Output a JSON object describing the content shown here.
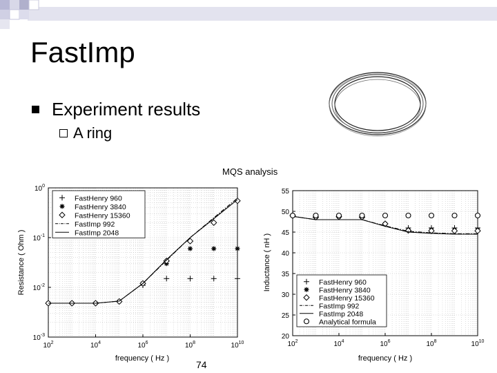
{
  "slide": {
    "title": "FastImp",
    "bullet1": "Experiment results",
    "bullet2": "A ring",
    "mqs_label": "MQS analysis",
    "page_number": "74"
  },
  "chart_data": [
    {
      "type": "line",
      "xlabel": "frequency ( Hz )",
      "ylabel": "Resistance ( Ohm )",
      "x_scale": "log",
      "y_scale": "log",
      "xlim": [
        100,
        10000000000
      ],
      "ylim": [
        0.001,
        1
      ],
      "x_ticks": [
        "10^2",
        "10^4",
        "10^6",
        "10^8",
        "10^10"
      ],
      "y_ticks": [
        "10^0",
        "10^-1",
        "10^-2",
        "10^-3"
      ],
      "grid": true,
      "legend_placement": "top-left",
      "series": [
        {
          "name": "FastHenry 960",
          "marker": "+",
          "x": [
            100,
            1000,
            10000,
            100000,
            1000000,
            10000000,
            100000000,
            1000000000,
            10000000000
          ],
          "y": [
            0.0048,
            0.0048,
            0.0048,
            0.0052,
            0.011,
            0.015,
            0.015,
            0.015,
            0.015
          ]
        },
        {
          "name": "FastHenry 3840",
          "marker": "*",
          "x": [
            100,
            1000,
            10000,
            100000,
            1000000,
            10000000,
            100000000,
            1000000000,
            10000000000
          ],
          "y": [
            0.0048,
            0.0048,
            0.0048,
            0.0052,
            0.012,
            0.03,
            0.06,
            0.06,
            0.06
          ]
        },
        {
          "name": "FastHenry 15360",
          "marker": "diamond",
          "x": [
            100,
            1000,
            10000,
            100000,
            1000000,
            10000000,
            100000000,
            1000000000,
            10000000000
          ],
          "y": [
            0.0048,
            0.0048,
            0.0048,
            0.0052,
            0.012,
            0.034,
            0.085,
            0.2,
            0.55
          ]
        },
        {
          "name": "FastImp 992",
          "marker": "dashdot",
          "x": [
            100,
            1000,
            10000,
            100000,
            1000000,
            10000000,
            100000000,
            1000000000,
            10000000000
          ],
          "y": [
            0.0048,
            0.0048,
            0.0048,
            0.0053,
            0.012,
            0.035,
            0.1,
            0.25,
            0.62
          ]
        },
        {
          "name": "FastImp 2048",
          "marker": "solid",
          "x": [
            100,
            1000,
            10000,
            100000,
            1000000,
            10000000,
            100000000,
            1000000000,
            10000000000
          ],
          "y": [
            0.0048,
            0.0048,
            0.0048,
            0.0053,
            0.012,
            0.036,
            0.1,
            0.24,
            0.58
          ]
        }
      ]
    },
    {
      "type": "line",
      "xlabel": "frequency ( Hz )",
      "ylabel": "Inductance ( nH )",
      "x_scale": "log",
      "y_scale": "linear",
      "xlim": [
        100,
        10000000000
      ],
      "ylim": [
        20,
        55
      ],
      "x_ticks": [
        "10^2",
        "10^4",
        "10^6",
        "10^8",
        "10^10"
      ],
      "y_ticks": [
        "20",
        "25",
        "30",
        "35",
        "40",
        "45",
        "50",
        "55"
      ],
      "grid": true,
      "legend_placement": "bottom-left",
      "series": [
        {
          "name": "FastHenry 960",
          "marker": "+",
          "x": [
            100,
            1000,
            10000,
            100000,
            1000000,
            10000000,
            100000000,
            1000000000,
            10000000000
          ],
          "y": [
            49,
            48.6,
            48.7,
            48.6,
            47,
            46,
            46,
            46,
            46
          ]
        },
        {
          "name": "FastHenry 3840",
          "marker": "*",
          "x": [
            100,
            1000,
            10000,
            100000,
            1000000,
            10000000,
            100000000,
            1000000000,
            10000000000
          ],
          "y": [
            49,
            48.6,
            48.7,
            48.6,
            47,
            45.6,
            45.5,
            45.5,
            45.5
          ]
        },
        {
          "name": "FastHenry 15360",
          "marker": "diamond",
          "x": [
            100,
            1000,
            10000,
            100000,
            1000000,
            10000000,
            100000000,
            1000000000,
            10000000000
          ],
          "y": [
            49,
            48.6,
            48.7,
            48.6,
            47,
            45.4,
            45.3,
            45.3,
            45.3
          ]
        },
        {
          "name": "FastImp 992",
          "marker": "dashdot",
          "x": [
            100,
            1000,
            10000,
            100000,
            1000000,
            10000000,
            100000000,
            1000000000,
            10000000000
          ],
          "y": [
            48.8,
            48,
            48,
            48,
            46.5,
            45.2,
            44.8,
            44.6,
            44.6
          ]
        },
        {
          "name": "FastImp 2048",
          "marker": "solid",
          "x": [
            100,
            1000,
            10000,
            100000,
            1000000,
            10000000,
            100000000,
            1000000000,
            10000000000
          ],
          "y": [
            48.8,
            48,
            48,
            48,
            46.4,
            45,
            44.7,
            44.5,
            44.5
          ]
        },
        {
          "name": "Analytical formula",
          "marker": "circle",
          "x": [
            100,
            1000,
            10000,
            100000,
            1000000,
            10000000,
            100000000,
            1000000000,
            10000000000
          ],
          "y": [
            49,
            49,
            49,
            49,
            49,
            49,
            49,
            49,
            49
          ]
        }
      ]
    }
  ]
}
